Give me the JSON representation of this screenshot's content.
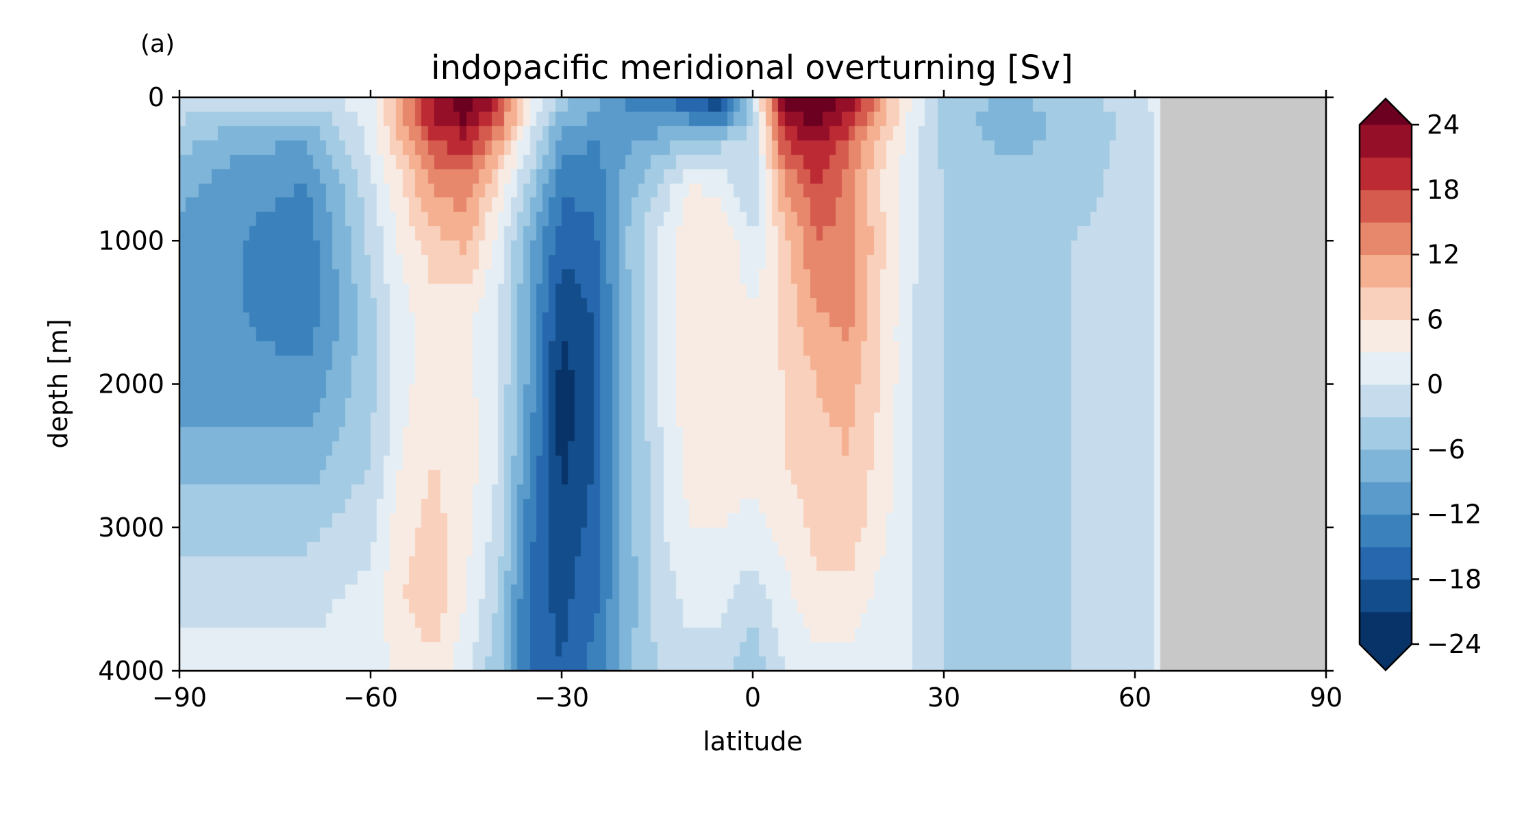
{
  "panel_label": "(a)",
  "chart_data": {
    "type": "heatmap",
    "title": "indopacific meridional overturning [Sv]",
    "xlabel": "latitude",
    "ylabel": "depth [m]",
    "xlim": [
      -90,
      90
    ],
    "ylim": [
      4000,
      0
    ],
    "y_inverted": true,
    "x_ticks": [
      -90,
      -60,
      -30,
      0,
      30,
      60,
      90
    ],
    "x_tick_labels": [
      "−90",
      "−60",
      "−30",
      "0",
      "30",
      "60",
      "90"
    ],
    "y_ticks": [
      0,
      1000,
      2000,
      3000,
      4000
    ],
    "y_tick_labels": [
      "0",
      "1000",
      "2000",
      "3000",
      "4000"
    ],
    "colormap": "RdBu_r",
    "colorbar": {
      "range": [
        -24,
        24
      ],
      "extend": "both",
      "ticks": [
        24,
        18,
        12,
        6,
        0,
        -6,
        -12,
        -18,
        -24
      ],
      "tick_labels": [
        "24",
        "18",
        "12",
        "6",
        "0",
        "−6",
        "−12",
        "−18",
        "−24"
      ],
      "levels": [
        -24,
        -21,
        -18,
        -15,
        -12,
        -9,
        -6,
        -3,
        0,
        3,
        6,
        9,
        12,
        15,
        18,
        21,
        24
      ],
      "colors": [
        "#083368",
        "#134d8b",
        "#2667ae",
        "#3b82bd",
        "#5a9bcb",
        "#7fb5d9",
        "#a3cbe3",
        "#c6dcec",
        "#e4eef4",
        "#f8ebe4",
        "#f9d0bb",
        "#f4b090",
        "#e7876b",
        "#d45b4e",
        "#bc2a34",
        "#960f28",
        "#6c0020"
      ],
      "under_color": "#083368",
      "over_color": "#6c0020"
    },
    "missing_data": {
      "lat_min": 64,
      "lat_max": 90,
      "color": "#c8c8c8"
    },
    "grid": false,
    "data_description_note": "",
    "latitudes": [
      -90,
      -80,
      -70,
      -60,
      -55,
      -50,
      -45,
      -40,
      -35,
      -30,
      -25,
      -20,
      -15,
      -10,
      -5,
      0,
      5,
      10,
      15,
      20,
      25,
      30,
      40,
      50,
      60,
      64
    ],
    "depths": [
      0,
      100,
      300,
      600,
      1000,
      1500,
      2000,
      2500,
      3000,
      3500,
      4000
    ],
    "values": [
      [
        0,
        0,
        0,
        2,
        10,
        20,
        26,
        20,
        4,
        -4,
        -8,
        -12,
        -14,
        -18,
        -22,
        0,
        26,
        26,
        22,
        12,
        2,
        -4,
        -6,
        -4,
        -1,
        1
      ],
      [
        -2,
        -4,
        -5,
        2,
        12,
        22,
        26,
        18,
        2,
        -6,
        -9,
        -12,
        -12,
        -14,
        -16,
        -4,
        24,
        26,
        22,
        12,
        2,
        -4,
        -8,
        -5,
        -2,
        1
      ],
      [
        -5,
        -8,
        -9,
        1,
        10,
        18,
        20,
        12,
        0,
        -10,
        -12,
        -10,
        -8,
        -6,
        -4,
        -2,
        18,
        22,
        16,
        8,
        1,
        -4,
        -7,
        -5,
        -2,
        1
      ],
      [
        -8,
        -11,
        -12,
        -1,
        6,
        13,
        14,
        6,
        -4,
        -14,
        -14,
        -8,
        -3,
        3,
        2,
        -3,
        12,
        18,
        14,
        6,
        1,
        -3,
        -5,
        -4,
        -2,
        1
      ],
      [
        -10,
        -12,
        -14,
        -2,
        4,
        8,
        10,
        2,
        -8,
        -17,
        -16,
        -6,
        0,
        5,
        6,
        0,
        8,
        15,
        14,
        7,
        1,
        -3,
        -4,
        -3,
        -2,
        1
      ],
      [
        -10,
        -12,
        -14,
        -4,
        2,
        5,
        4,
        0,
        -10,
        -20,
        -18,
        -8,
        0,
        5,
        6,
        3,
        7,
        12,
        13,
        6,
        0,
        -3,
        -4,
        -3,
        -2,
        1
      ],
      [
        -10,
        -11,
        -11,
        -4,
        2,
        5,
        4,
        0,
        -10,
        -23,
        -18,
        -8,
        0,
        5,
        6,
        4,
        6,
        9,
        10,
        6,
        0,
        -3,
        -4,
        -3,
        -2,
        1
      ],
      [
        -8,
        -8,
        -8,
        -3,
        3,
        6,
        5,
        0,
        -12,
        -22,
        -18,
        -8,
        -1,
        4,
        5,
        4,
        6,
        8,
        9,
        5,
        0,
        -3,
        -4,
        -3,
        -2,
        1
      ],
      [
        -4,
        -4,
        -4,
        -1,
        5,
        7,
        4,
        -1,
        -14,
        -20,
        -17,
        -8,
        -1,
        3,
        3,
        2,
        4,
        7,
        8,
        4,
        0,
        -3,
        -4,
        -3,
        -2,
        1
      ],
      [
        -1,
        -1,
        -1,
        1,
        6,
        8,
        3,
        -3,
        -16,
        -19,
        -16,
        -8,
        -2,
        1,
        1,
        -2,
        2,
        5,
        5,
        2,
        0,
        -3,
        -4,
        -3,
        -2,
        1
      ],
      [
        2,
        1,
        1,
        1,
        4,
        5,
        1,
        -5,
        -16,
        -18,
        -14,
        -7,
        -3,
        -1,
        -2,
        -5,
        0,
        2,
        2,
        1,
        0,
        -3,
        -4,
        -3,
        -2,
        1
      ]
    ]
  }
}
